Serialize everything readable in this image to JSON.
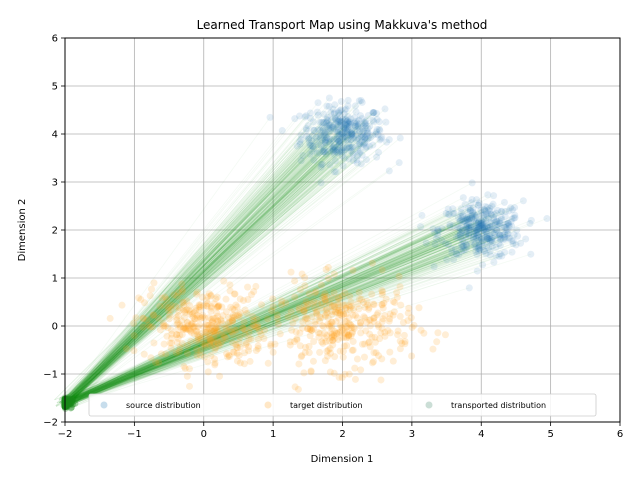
{
  "chart_data": {
    "type": "scatter",
    "title": "Learned Transport Map using Makkuva's method",
    "xlabel": "Dimension 1",
    "ylabel": "Dimension 2",
    "xlim": [
      -2,
      6
    ],
    "ylim": [
      -2,
      6
    ],
    "xticks": [
      "−2",
      "−1",
      "0",
      "1",
      "2",
      "3",
      "4",
      "5",
      "6"
    ],
    "yticks": [
      "−2",
      "−1",
      "0",
      "1",
      "2",
      "3",
      "4",
      "5",
      "6"
    ],
    "grid": true,
    "legend": {
      "placement": "lower-center",
      "columns": 3,
      "entries": [
        "source distribution",
        "target distribution",
        "transported distribution"
      ]
    },
    "series": [
      {
        "name": "source distribution",
        "color": "#1f77b4",
        "clusters": [
          {
            "center": [
              2.0,
              4.0
            ],
            "spread": [
              0.3,
              0.3
            ]
          },
          {
            "center": [
              4.0,
              2.0
            ],
            "spread": [
              0.3,
              0.3
            ]
          }
        ]
      },
      {
        "name": "target distribution",
        "color": "#ff9f1c",
        "clusters": [
          {
            "center": [
              0.0,
              0.0
            ],
            "spread": [
              0.45,
              0.4
            ]
          },
          {
            "center": [
              2.0,
              0.0
            ],
            "spread": [
              0.5,
              0.45
            ]
          }
        ]
      },
      {
        "name": "transported distribution",
        "color": "#2e7d5a",
        "clusters": [
          {
            "center": [
              -2.0,
              -1.6
            ],
            "spread": [
              0.05,
              0.05
            ]
          }
        ]
      }
    ],
    "transport_lines_color": "#2ca02c"
  }
}
